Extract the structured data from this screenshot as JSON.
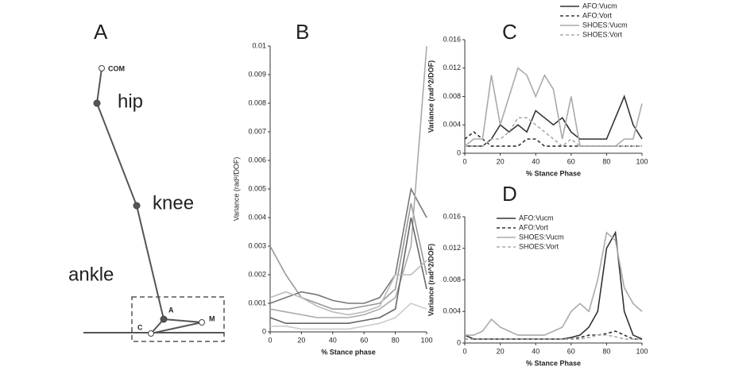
{
  "diagram": {
    "label": "A",
    "points": [
      "COM",
      "hip",
      "knee",
      "ankle"
    ],
    "foot_points": [
      "A",
      "C",
      "M"
    ]
  },
  "chart_data": [
    {
      "type": "line",
      "panel_label": "B",
      "ylabel": "Variance (rad²/DOF)",
      "xlabel": "% Stance phase",
      "x": [
        0,
        10,
        20,
        30,
        40,
        50,
        60,
        70,
        80,
        90,
        100
      ],
      "xlim": [
        0,
        100
      ],
      "ylim": [
        0,
        0.01
      ],
      "xticks": [
        0,
        20,
        40,
        60,
        80,
        100
      ],
      "yticks": [
        0,
        0.001,
        0.002,
        0.003,
        0.004,
        0.005,
        0.006,
        0.007,
        0.008,
        0.009,
        0.01
      ],
      "series": [
        {
          "color": "#999999",
          "values": [
            0.003,
            0.002,
            0.0012,
            0.001,
            0.0008,
            0.0008,
            0.0009,
            0.001,
            0.0015,
            0.0045,
            0.002
          ]
        },
        {
          "color": "#777777",
          "values": [
            0.001,
            0.0012,
            0.0014,
            0.0013,
            0.0011,
            0.001,
            0.001,
            0.0012,
            0.002,
            0.005,
            0.004
          ]
        },
        {
          "color": "#aaaaaa",
          "values": [
            0.0008,
            0.0007,
            0.0006,
            0.0005,
            0.0005,
            0.0005,
            0.0006,
            0.0008,
            0.0012,
            0.003,
            0.01
          ]
        },
        {
          "color": "#666666",
          "values": [
            0.0005,
            0.0003,
            0.0003,
            0.0003,
            0.0003,
            0.0003,
            0.0004,
            0.0005,
            0.0008,
            0.004,
            0.0015
          ]
        },
        {
          "color": "#bbbbbb",
          "values": [
            0.0012,
            0.0014,
            0.0012,
            0.0009,
            0.0007,
            0.0006,
            0.0007,
            0.0009,
            0.002,
            0.002,
            0.0025
          ]
        },
        {
          "color": "#cccccc",
          "values": [
            0.0002,
            0.0002,
            0.0001,
            0.0001,
            0.0001,
            0.0001,
            0.0002,
            0.0003,
            0.0005,
            0.001,
            0.0008
          ]
        }
      ]
    },
    {
      "type": "line",
      "panel_label": "C",
      "ylabel": "Variance (rad^2/DOF)",
      "xlabel": "% Stance Phase",
      "legend": "outside upper right",
      "x": [
        0,
        5,
        10,
        15,
        20,
        25,
        30,
        35,
        40,
        45,
        50,
        55,
        60,
        65,
        70,
        75,
        80,
        85,
        90,
        95,
        100
      ],
      "xlim": [
        0,
        100
      ],
      "ylim": [
        0,
        0.016
      ],
      "xticks": [
        0,
        20,
        40,
        60,
        80,
        100
      ],
      "yticks": [
        0,
        0.004,
        0.008,
        0.012,
        0.016
      ],
      "series": [
        {
          "name": "AFO:Vucm",
          "color": "#333333",
          "dashed": false,
          "values": [
            0.001,
            0.001,
            0.001,
            0.002,
            0.004,
            0.003,
            0.004,
            0.003,
            0.006,
            0.005,
            0.004,
            0.005,
            0.003,
            0.002,
            0.002,
            0.002,
            0.002,
            0.005,
            0.008,
            0.004,
            0.002
          ]
        },
        {
          "name": "AFO:Vort",
          "color": "#333333",
          "dashed": true,
          "values": [
            0.002,
            0.003,
            0.002,
            0.001,
            0.001,
            0.001,
            0.001,
            0.002,
            0.002,
            0.001,
            0.001,
            0.001,
            0.001,
            0.001,
            0.001,
            0.001,
            0.001,
            0.001,
            0.001,
            0.001,
            0.001
          ]
        },
        {
          "name": "SHOES:Vucm",
          "color": "#aaaaaa",
          "dashed": false,
          "values": [
            0.001,
            0.002,
            0.002,
            0.011,
            0.004,
            0.008,
            0.012,
            0.011,
            0.008,
            0.011,
            0.009,
            0.002,
            0.008,
            0.001,
            0.001,
            0.001,
            0.001,
            0.001,
            0.002,
            0.002,
            0.007
          ]
        },
        {
          "name": "SHOES:Vort",
          "color": "#aaaaaa",
          "dashed": true,
          "values": [
            0.001,
            0.001,
            0.001,
            0.002,
            0.002,
            0.003,
            0.005,
            0.005,
            0.004,
            0.003,
            0.002,
            0.001,
            0.002,
            0.001,
            0.001,
            0.001,
            0.001,
            0.001,
            0.001,
            0.001,
            0.001
          ]
        }
      ]
    },
    {
      "type": "line",
      "panel_label": "D",
      "ylabel": "Variance (rad^2/DOF)",
      "xlabel": "% Stance Phase",
      "legend": "upper left",
      "x": [
        0,
        5,
        10,
        15,
        20,
        25,
        30,
        35,
        40,
        45,
        50,
        55,
        60,
        65,
        70,
        75,
        80,
        85,
        90,
        95,
        100
      ],
      "xlim": [
        0,
        100
      ],
      "ylim": [
        0,
        0.016
      ],
      "xticks": [
        0,
        20,
        40,
        60,
        80,
        100
      ],
      "yticks": [
        0,
        0.004,
        0.008,
        0.012,
        0.016
      ],
      "series": [
        {
          "name": "AFO:Vucm",
          "color": "#333333",
          "dashed": false,
          "values": [
            0.001,
            0.0005,
            0.0005,
            0.0005,
            0.0005,
            0.0005,
            0.0005,
            0.0005,
            0.0005,
            0.0005,
            0.0005,
            0.0005,
            0.0007,
            0.001,
            0.002,
            0.004,
            0.012,
            0.014,
            0.004,
            0.001,
            0.0005
          ]
        },
        {
          "name": "AFO:Vort",
          "color": "#333333",
          "dashed": true,
          "values": [
            0.0005,
            0.0005,
            0.0005,
            0.0005,
            0.0005,
            0.0005,
            0.0005,
            0.0005,
            0.0005,
            0.0005,
            0.0005,
            0.0005,
            0.0005,
            0.0007,
            0.001,
            0.001,
            0.0012,
            0.0015,
            0.001,
            0.0005,
            0.0005
          ]
        },
        {
          "name": "SHOES:Vucm",
          "color": "#aaaaaa",
          "dashed": false,
          "values": [
            0.001,
            0.001,
            0.0015,
            0.003,
            0.002,
            0.0015,
            0.001,
            0.001,
            0.001,
            0.001,
            0.0015,
            0.002,
            0.004,
            0.005,
            0.004,
            0.008,
            0.014,
            0.013,
            0.007,
            0.005,
            0.004
          ]
        },
        {
          "name": "SHOES:Vort",
          "color": "#aaaaaa",
          "dashed": true,
          "values": [
            0.0005,
            0.0005,
            0.0005,
            0.0005,
            0.0005,
            0.0005,
            0.0005,
            0.0005,
            0.0005,
            0.0005,
            0.0005,
            0.0005,
            0.0005,
            0.0005,
            0.0007,
            0.001,
            0.001,
            0.0008,
            0.0005,
            0.0005,
            0.0005
          ]
        }
      ]
    }
  ]
}
